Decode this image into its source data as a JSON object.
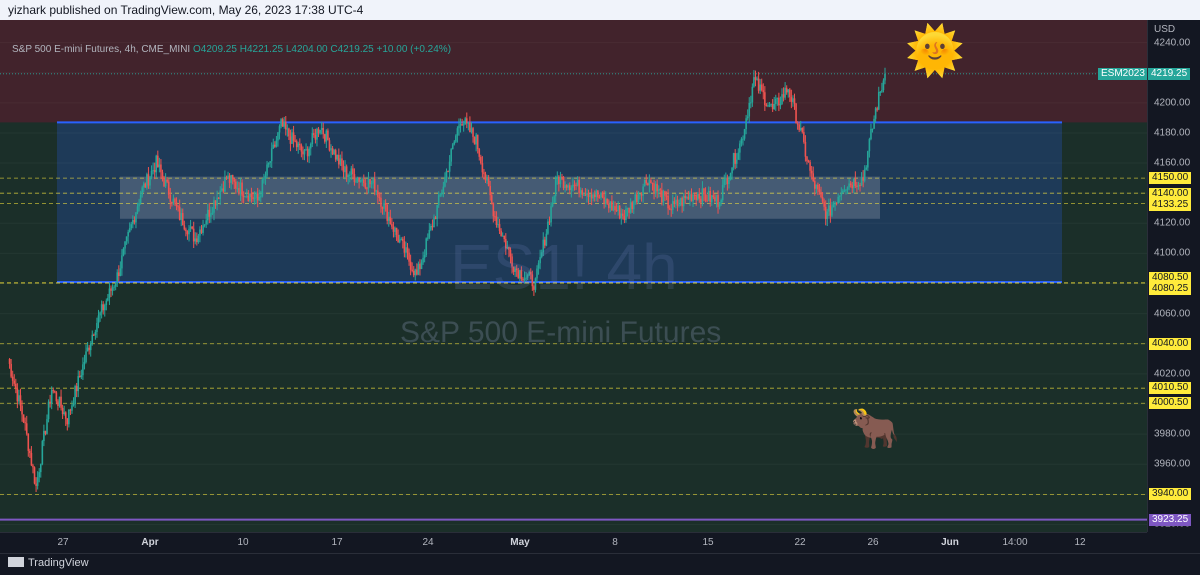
{
  "header": {
    "publisher_text": "yizhark published on TradingView.com, May 26, 2023 17:38 UTC-4"
  },
  "legend": {
    "symbol": "S&P 500 E-mini Futures, 4h, CME_MINI",
    "open": "O4209.25",
    "high": "H4221.25",
    "low": "L4204.00",
    "close": "C4219.25",
    "change": "+10.00 (+0.24%)"
  },
  "watermark": {
    "ticker": "ES1! 4h",
    "name": "S&P 500 E-mini Futures"
  },
  "price_axis": {
    "currency": "USD",
    "ticks": [
      "4240.00",
      "4220.00",
      "4200.00",
      "4180.00",
      "4160.00",
      "4140.00",
      "4120.00",
      "4100.00",
      "4080.00",
      "4060.00",
      "4040.00",
      "4020.00",
      "4000.00",
      "3980.00",
      "3960.00",
      "3940.00",
      "3920.00"
    ],
    "levels": [
      "4150.00",
      "4140.00",
      "4133.25",
      "4080.50",
      "4080.25",
      "4040.00",
      "4010.50",
      "4000.50",
      "3940.00",
      "3923.25"
    ],
    "symbol_tag": "ESM2023",
    "last_price": "4219.25"
  },
  "time_axis": {
    "labels": [
      {
        "text": "27",
        "bold": false
      },
      {
        "text": "Apr",
        "bold": true
      },
      {
        "text": "10",
        "bold": false
      },
      {
        "text": "17",
        "bold": false
      },
      {
        "text": "24",
        "bold": false
      },
      {
        "text": "May",
        "bold": true
      },
      {
        "text": "8",
        "bold": false
      },
      {
        "text": "15",
        "bold": false
      },
      {
        "text": "22",
        "bold": false
      },
      {
        "text": "26",
        "bold": false
      },
      {
        "text": "Jun",
        "bold": true
      },
      {
        "text": "14:00",
        "bold": false
      },
      {
        "text": "12",
        "bold": false
      }
    ]
  },
  "footer": {
    "brand": "TradingView"
  },
  "icons": {
    "sun": "sun-with-face-emoji",
    "bull": "ox-emoji",
    "scroll": "double-chevron-right-icon"
  },
  "colors": {
    "up": "#26a69a",
    "down": "#ef5350",
    "range_box": "#2962ff",
    "level_line": "#ffeb3b",
    "support": "#7e57c2"
  },
  "chart_data": {
    "type": "candlestick",
    "price_range": [
      3915,
      4255
    ],
    "range_box": {
      "top": 4187,
      "bottom": 4081
    },
    "inner_box": {
      "top": 4151,
      "bottom": 4123
    },
    "support_line": 3923.25,
    "key_points": [
      {
        "t": 0,
        "p": 4030
      },
      {
        "t": 10,
        "p": 3990
      },
      {
        "t": 18,
        "p": 3945
      },
      {
        "t": 28,
        "p": 4010
      },
      {
        "t": 38,
        "p": 3990
      },
      {
        "t": 55,
        "p": 4050
      },
      {
        "t": 70,
        "p": 4085
      },
      {
        "t": 85,
        "p": 4140
      },
      {
        "t": 95,
        "p": 4160
      },
      {
        "t": 110,
        "p": 4125
      },
      {
        "t": 120,
        "p": 4110
      },
      {
        "t": 140,
        "p": 4150
      },
      {
        "t": 160,
        "p": 4135
      },
      {
        "t": 175,
        "p": 4185
      },
      {
        "t": 190,
        "p": 4165
      },
      {
        "t": 200,
        "p": 4185
      },
      {
        "t": 215,
        "p": 4155
      },
      {
        "t": 235,
        "p": 4145
      },
      {
        "t": 250,
        "p": 4110
      },
      {
        "t": 262,
        "p": 4085
      },
      {
        "t": 275,
        "p": 4130
      },
      {
        "t": 290,
        "p": 4190
      },
      {
        "t": 300,
        "p": 4175
      },
      {
        "t": 312,
        "p": 4125
      },
      {
        "t": 325,
        "p": 4090
      },
      {
        "t": 338,
        "p": 4080
      },
      {
        "t": 352,
        "p": 4150
      },
      {
        "t": 375,
        "p": 4140
      },
      {
        "t": 395,
        "p": 4125
      },
      {
        "t": 410,
        "p": 4150
      },
      {
        "t": 425,
        "p": 4130
      },
      {
        "t": 440,
        "p": 4140
      },
      {
        "t": 455,
        "p": 4135
      },
      {
        "t": 470,
        "p": 4175
      },
      {
        "t": 478,
        "p": 4215
      },
      {
        "t": 490,
        "p": 4195
      },
      {
        "t": 500,
        "p": 4210
      },
      {
        "t": 508,
        "p": 4180
      },
      {
        "t": 515,
        "p": 4150
      },
      {
        "t": 525,
        "p": 4125
      },
      {
        "t": 535,
        "p": 4145
      },
      {
        "t": 548,
        "p": 4150
      },
      {
        "t": 556,
        "p": 4195
      },
      {
        "t": 562,
        "p": 4219
      }
    ]
  }
}
